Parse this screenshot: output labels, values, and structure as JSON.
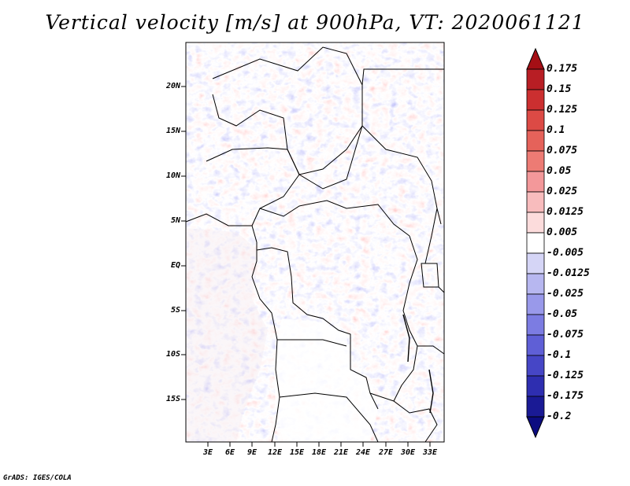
{
  "title": "Vertical velocity [m/s] at 900hPa, VT: 2020061121",
  "footer": "GrADS: IGES/COLA",
  "lat_labels": [
    "20N",
    "15N",
    "10N",
    "5N",
    "EQ",
    "5S",
    "10S",
    "15S"
  ],
  "lon_labels": [
    "3E",
    "6E",
    "9E",
    "12E",
    "15E",
    "18E",
    "21E",
    "24E",
    "27E",
    "30E",
    "33E"
  ],
  "colorbar": {
    "labels": [
      "0.175",
      "0.15",
      "0.125",
      "0.1",
      "0.075",
      "0.05",
      "0.025",
      "0.0125",
      "0.005",
      "-0.005",
      "-0.0125",
      "-0.025",
      "-0.05",
      "-0.075",
      "-0.1",
      "-0.125",
      "-0.175",
      "-0.2"
    ],
    "colors": [
      "#a50f15",
      "#b81e24",
      "#cb2f30",
      "#dc4a45",
      "#e5625a",
      "#ed7b74",
      "#f3989a",
      "#f8bcbd",
      "#fcdcdc",
      "#ffffff",
      "#d5d5f6",
      "#b7b7f0",
      "#9999ea",
      "#7c7ce2",
      "#5f5fd6",
      "#4646c6",
      "#2e2eb0",
      "#1a1a95",
      "#0c0c80"
    ]
  },
  "colors": {
    "positive": "#e23b3b",
    "negative": "#3c3cd8",
    "border": "#000000"
  }
}
